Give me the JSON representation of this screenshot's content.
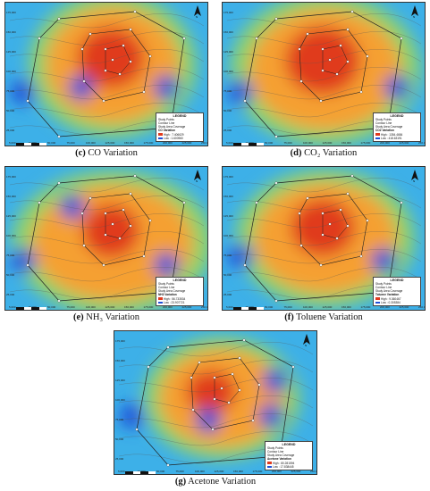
{
  "panels": [
    {
      "id": "c",
      "caption_letter": "(c)",
      "caption_text": " CO Variation",
      "legend_title": "LEGEND",
      "legend_items": [
        "Study Points",
        "Contour Line",
        "Study Area Coverage"
      ],
      "variation_title": "CO Variation",
      "high_value": "7.406629",
      "low_value": "1.600960"
    },
    {
      "id": "d",
      "caption_letter": "(d)",
      "caption_text": " CO₂ Variation",
      "legend_title": "LEGEND",
      "legend_items": [
        "Study Points",
        "Contour Line",
        "Study Area Coverage"
      ],
      "variation_title": "CO2 Variation",
      "high_value": "1354.4684",
      "low_value": "418.63191"
    },
    {
      "id": "e",
      "caption_letter": "(e)",
      "caption_text": " NH₃ Variation",
      "legend_title": "LEGEND",
      "legend_items": [
        "Study Points",
        "Contour Line",
        "Study Area Coverage"
      ],
      "variation_title": "NH3 Variation",
      "high_value": "56.733534",
      "low_value": "23.907721"
    },
    {
      "id": "f",
      "caption_letter": "(f)",
      "caption_text": " Toluene Variation",
      "legend_title": "LEGEND",
      "legend_items": [
        "Study Points",
        "Contour Line",
        "Study Area Coverage"
      ],
      "variation_title": "Toluene Variation",
      "high_value": "9.360467",
      "low_value": "0.305384"
    },
    {
      "id": "g",
      "caption_letter": "(g)",
      "caption_text": " Acetone Variation",
      "legend_title": "LEGEND",
      "legend_items": [
        "Study Points",
        "Contour Line",
        "Study Area Coverage"
      ],
      "variation_title": "Acetone Variation",
      "high_value": "80.281594",
      "low_value": "17.838445"
    }
  ],
  "colors": {
    "high": "#e03a1e",
    "mid": "#f5a030",
    "low_mid": "#8fd36a",
    "cool": "#3db0e8",
    "low": "#1f4fd8",
    "boundary": "#222222"
  },
  "axis_ticks_x": [
    "5,000",
    "25,000",
    "50,000",
    "75,000",
    "100,000",
    "125,000",
    "150,000",
    "175,000",
    "200,000",
    "225,000",
    "250,000"
  ],
  "axis_ticks_y": [
    "175,000",
    "150,000",
    "125,000",
    "100,000",
    "75,000",
    "50,000",
    "25,000"
  ]
}
